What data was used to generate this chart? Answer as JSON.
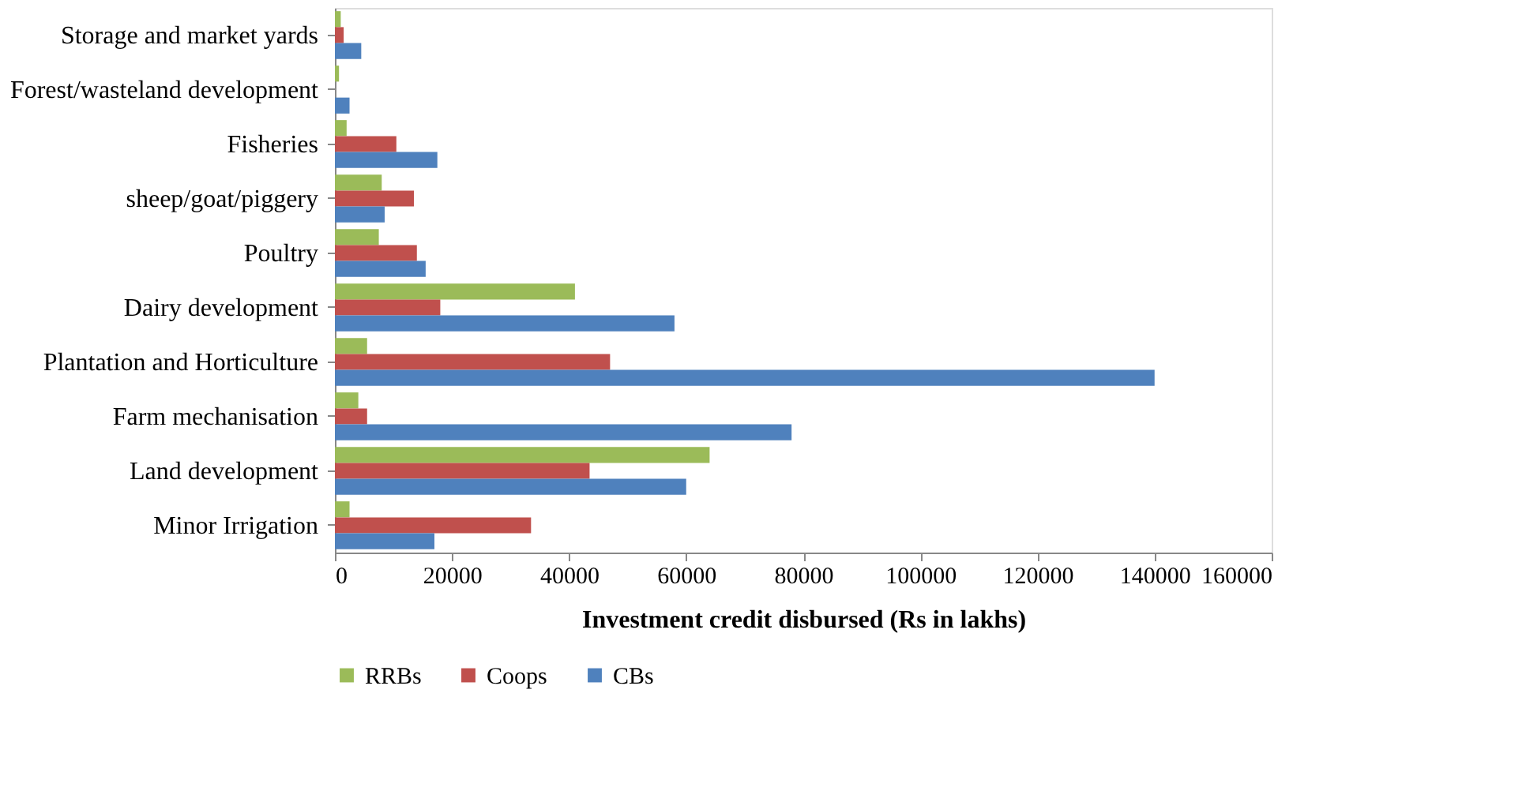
{
  "chart_data": {
    "type": "bar",
    "orientation": "horizontal",
    "xlabel": "Investment credit disbursed (Rs in lakhs)",
    "categories": [
      "Storage and market yards",
      "Forest/wasteland development",
      "Fisheries",
      "sheep/goat/piggery",
      "Poultry",
      "Dairy development",
      "Plantation and Horticulture",
      "Farm mechanisation",
      "Land development",
      "Minor Irrigation"
    ],
    "series": [
      {
        "name": "RRBs",
        "color": "#9bbb59",
        "values": [
          1000,
          700,
          2000,
          8000,
          7500,
          41000,
          5500,
          4000,
          64000,
          2500
        ]
      },
      {
        "name": "Coops",
        "color": "#c0504d",
        "values": [
          1500,
          null,
          10500,
          13500,
          14000,
          18000,
          47000,
          5500,
          43500,
          33500
        ]
      },
      {
        "name": "CBs",
        "color": "#4f81bd",
        "values": [
          4500,
          2500,
          17500,
          8500,
          15500,
          58000,
          140000,
          78000,
          60000,
          17000
        ]
      }
    ],
    "xlim": [
      0,
      160000
    ],
    "xticks": [
      0,
      20000,
      40000,
      60000,
      80000,
      100000,
      120000,
      140000,
      160000
    ],
    "grid": false,
    "legend": "bottom"
  }
}
